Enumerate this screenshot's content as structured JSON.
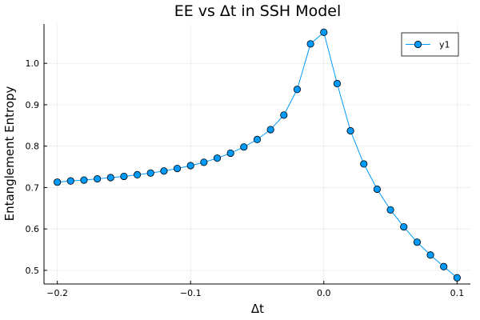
{
  "chart_data": {
    "type": "line",
    "title": "EE vs Δt in SSH Model",
    "xlabel": "Δt",
    "ylabel": "Entanglement Entropy",
    "xlim": [
      -0.21,
      0.11
    ],
    "ylim": [
      0.467,
      1.095
    ],
    "x_ticks": [
      {
        "value": -0.2,
        "label": "−0.2"
      },
      {
        "value": -0.1,
        "label": "−0.1"
      },
      {
        "value": 0.0,
        "label": "0.0"
      },
      {
        "value": 0.1,
        "label": "0.1"
      }
    ],
    "y_ticks": [
      {
        "value": 0.5,
        "label": "0.5"
      },
      {
        "value": 0.6,
        "label": "0.6"
      },
      {
        "value": 0.7,
        "label": "0.7"
      },
      {
        "value": 0.8,
        "label": "0.8"
      },
      {
        "value": 0.9,
        "label": "0.9"
      },
      {
        "value": 1.0,
        "label": "1.0"
      }
    ],
    "grid": true,
    "legend_position": "top-right",
    "series": [
      {
        "name": "y1",
        "color": "#009AFA",
        "marker": "circle",
        "x": [
          -0.2,
          -0.19,
          -0.18,
          -0.17,
          -0.16,
          -0.15,
          -0.14,
          -0.13,
          -0.12,
          -0.11,
          -0.1,
          -0.09,
          -0.08,
          -0.07,
          -0.06,
          -0.05,
          -0.04,
          -0.03,
          -0.02,
          -0.01,
          0.0,
          0.01,
          0.02,
          0.03,
          0.04,
          0.05,
          0.06,
          0.07,
          0.08,
          0.09,
          0.1
        ],
        "y": [
          0.713,
          0.716,
          0.718,
          0.721,
          0.724,
          0.727,
          0.731,
          0.735,
          0.74,
          0.746,
          0.753,
          0.761,
          0.771,
          0.783,
          0.798,
          0.816,
          0.84,
          0.875,
          0.937,
          1.047,
          1.075,
          0.951,
          0.837,
          0.757,
          0.696,
          0.646,
          0.605,
          0.568,
          0.537,
          0.509,
          0.482
        ]
      }
    ]
  }
}
